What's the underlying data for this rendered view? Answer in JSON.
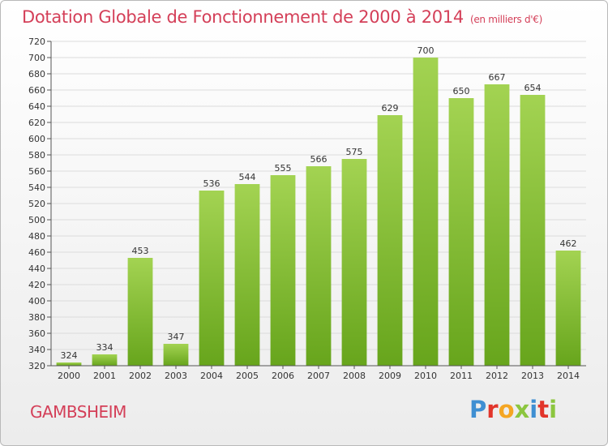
{
  "header": {
    "title": "Dotation Globale de Fonctionnement de 2000 à 2014",
    "unit": "(en milliers d'€)"
  },
  "footer": {
    "commune": "GAMBSHEIM",
    "logo": "Proxiti"
  },
  "colors": {
    "accent": "#d43f58",
    "bar_light": "#a3d352",
    "bar_dark": "#67a51c"
  },
  "chart_data": {
    "type": "bar",
    "title": "Dotation Globale de Fonctionnement de 2000 à 2014",
    "subtitle": "(en milliers d'€)",
    "categories": [
      "2000",
      "2001",
      "2002",
      "2003",
      "2004",
      "2005",
      "2006",
      "2007",
      "2008",
      "2009",
      "2010",
      "2011",
      "2012",
      "2013",
      "2014"
    ],
    "values": [
      324,
      334,
      453,
      347,
      536,
      544,
      555,
      566,
      575,
      629,
      700,
      650,
      667,
      654,
      462
    ],
    "ylim": [
      320,
      720
    ],
    "yticks": [
      320,
      340,
      360,
      380,
      400,
      420,
      440,
      460,
      480,
      500,
      520,
      540,
      560,
      580,
      600,
      620,
      640,
      660,
      680,
      700,
      720
    ],
    "grid": true,
    "xlabel": "",
    "ylabel": ""
  }
}
